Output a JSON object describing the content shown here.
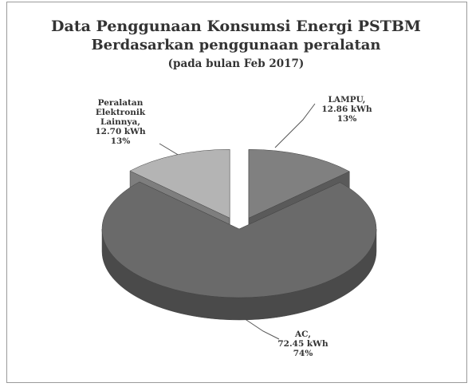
{
  "chart_data": {
    "type": "pie3d",
    "title": "Data Penggunaan Konsumsi Energi PSTBM",
    "subtitle": "Berdasarkan penggunaan peralatan",
    "note": "(pada bulan Feb 2017)",
    "categories": [
      "LAMPU,",
      "AC,",
      "Peralatan Elektronik Lainnya,"
    ],
    "values": [
      12.86,
      72.45,
      12.7
    ],
    "value_labels": [
      "12.86 kWh",
      "72.45 kWh",
      "12.70 kWh"
    ],
    "percent_labels": [
      "13%",
      "74%",
      "13%"
    ],
    "colors": [
      "#808080",
      "#6a6a6a",
      "#b4b4b4"
    ],
    "exploded": [
      true,
      false,
      true
    ]
  }
}
